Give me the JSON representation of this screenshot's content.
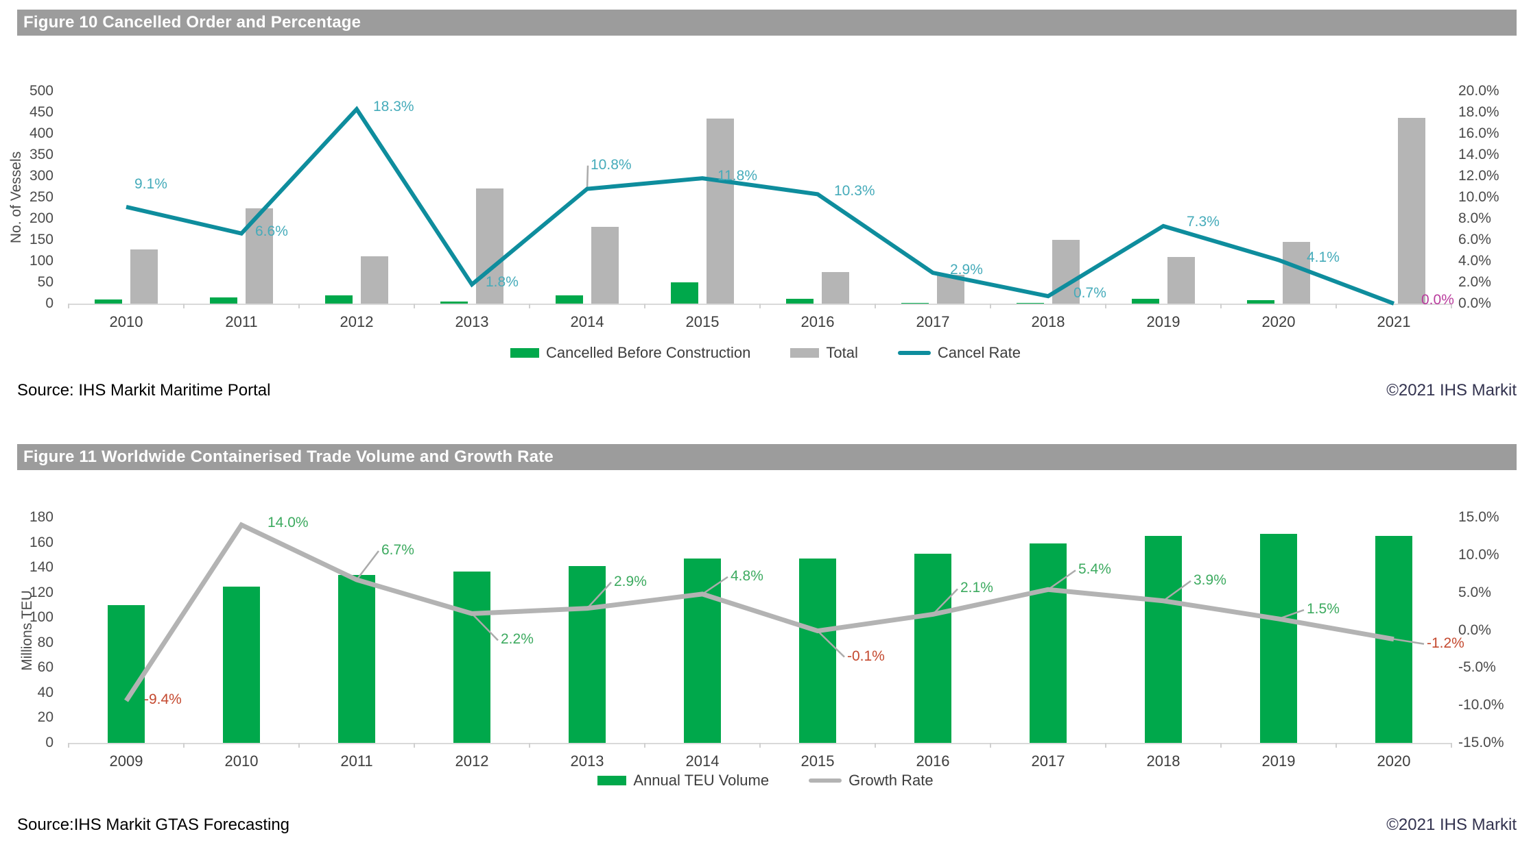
{
  "figures": [
    {
      "title": "Figure 10 Cancelled Order and Percentage",
      "source": "Source: IHS Markit Maritime Portal",
      "copyright": "©2021 IHS Markit",
      "legend": [
        {
          "label": "Cancelled Before Construction",
          "swatch": "rect",
          "color": "#00A84B"
        },
        {
          "label": "Total",
          "swatch": "rect",
          "color": "#B5B5B5"
        },
        {
          "label": "Cancel Rate",
          "swatch": "line",
          "color": "#0E8D9D"
        }
      ]
    },
    {
      "title": "Figure 11 Worldwide Containerised Trade Volume and Growth Rate",
      "source": "Source:IHS Markit GTAS Forecasting",
      "copyright": "©2021 IHS Markit",
      "legend": [
        {
          "label": "Annual TEU Volume",
          "swatch": "rect",
          "color": "#00A84B"
        },
        {
          "label": "Growth Rate",
          "swatch": "line",
          "color": "#B3B3B3"
        }
      ]
    }
  ],
  "chart_data": [
    {
      "type": "combo-bar-line",
      "title": "Figure 10 Cancelled Order and Percentage",
      "categories": [
        "2010",
        "2011",
        "2012",
        "2013",
        "2014",
        "2015",
        "2016",
        "2017",
        "2018",
        "2019",
        "2020",
        "2021"
      ],
      "left_axis": {
        "label": "No. of Vessels",
        "min": 0,
        "max": 500,
        "step": 50,
        "decimals": 0,
        "suffix": ""
      },
      "right_axis": {
        "label": "",
        "min": 0,
        "max": 20,
        "step": 2,
        "decimals": 1,
        "suffix": "%"
      },
      "grid": false,
      "legend_position": "bottom",
      "series": [
        {
          "name": "Cancelled Before Construction",
          "type": "bar",
          "axis": "left",
          "color": "#00A84B",
          "values": [
            10,
            15,
            20,
            5,
            20,
            50,
            12,
            2,
            1,
            12,
            8,
            0
          ]
        },
        {
          "name": "Total",
          "type": "bar",
          "axis": "left",
          "color": "#B5B5B5",
          "values": [
            128,
            225,
            111,
            271,
            180,
            436,
            75,
            68,
            150,
            110,
            145,
            437
          ]
        },
        {
          "name": "Cancel Rate",
          "type": "line",
          "axis": "right",
          "color": "#0E8D9D",
          "values": [
            9.1,
            6.6,
            18.3,
            1.8,
            10.8,
            11.8,
            10.3,
            2.9,
            0.7,
            7.3,
            4.1,
            0.0
          ],
          "label_color_default": "#45ABBA",
          "label_color_overrides": {
            "11": "#B93C9D"
          }
        }
      ]
    },
    {
      "type": "combo-bar-line",
      "title": "Figure 11 Worldwide Containerised Trade Volume and Growth Rate",
      "categories": [
        "2009",
        "2010",
        "2011",
        "2012",
        "2013",
        "2014",
        "2015",
        "2016",
        "2017",
        "2018",
        "2019",
        "2020"
      ],
      "left_axis": {
        "label": "Millions TEU",
        "min": 0,
        "max": 180,
        "step": 20,
        "decimals": 0,
        "suffix": ""
      },
      "right_axis": {
        "label": "",
        "min": -15,
        "max": 15,
        "step": 5,
        "decimals": 1,
        "suffix": "%"
      },
      "grid": false,
      "legend_position": "bottom",
      "series": [
        {
          "name": "Annual TEU Volume",
          "type": "bar",
          "axis": "left",
          "color": "#00A84B",
          "values": [
            110,
            125,
            134,
            137,
            141,
            147,
            147,
            151,
            159,
            165,
            167,
            165
          ]
        },
        {
          "name": "Growth Rate",
          "type": "line",
          "axis": "right",
          "color": "#B3B3B3",
          "values": [
            -9.4,
            14.0,
            6.7,
            2.2,
            2.9,
            4.8,
            -0.1,
            2.1,
            5.4,
            3.9,
            1.5,
            -1.2
          ],
          "label_color_positive": "#3CAA5F",
          "label_color_negative": "#C4492F"
        }
      ]
    }
  ]
}
